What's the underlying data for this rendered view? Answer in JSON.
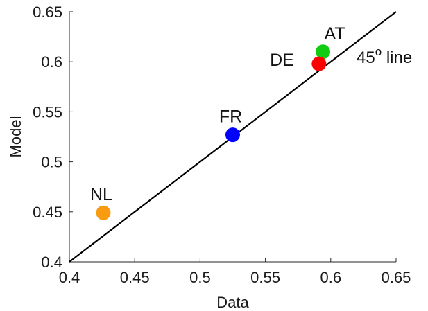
{
  "chart_data": {
    "type": "scatter",
    "title": "",
    "xlabel": "Data",
    "ylabel": "Model",
    "xlim": [
      0.4,
      0.65
    ],
    "ylim": [
      0.4,
      0.65
    ],
    "x_ticks": [
      "0.4",
      "0.45",
      "0.5",
      "0.55",
      "0.6",
      "0.65"
    ],
    "y_ticks": [
      "0.4",
      "0.45",
      "0.5",
      "0.55",
      "0.6",
      "0.65"
    ],
    "grid": false,
    "legend": "none",
    "points": [
      {
        "label": "NL",
        "x": 0.426,
        "y": 0.449,
        "color": "#F89B0F"
      },
      {
        "label": "FR",
        "x": 0.525,
        "y": 0.527,
        "color": "#0000FF"
      },
      {
        "label": "AT",
        "x": 0.594,
        "y": 0.61,
        "color": "#11CC11"
      },
      {
        "label": "DE",
        "x": 0.591,
        "y": 0.598,
        "color": "#FF0000"
      }
    ],
    "reference_line": {
      "label_main": "45",
      "label_sup": "o",
      "label_tail": " line",
      "from": [
        0.4,
        0.4
      ],
      "to": [
        0.65,
        0.65
      ]
    }
  }
}
